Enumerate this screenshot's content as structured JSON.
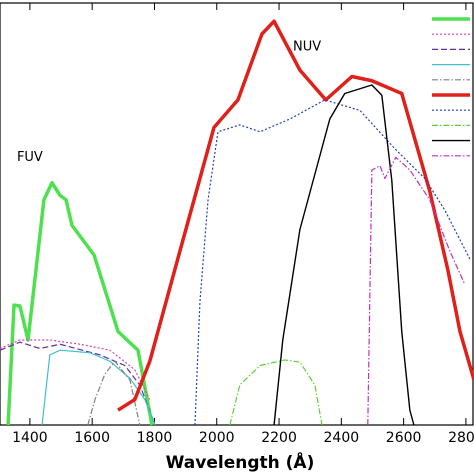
{
  "chart_data": {
    "type": "line",
    "xlabel": "Wavelength (Å)",
    "annotations": [
      {
        "text": "FUV",
        "x": 1400,
        "y": 63
      },
      {
        "text": "NUV",
        "x": 2290,
        "y": 89
      }
    ],
    "xlim": [
      1304,
      2826
    ],
    "ylim": [
      0,
      100
    ],
    "xticks": [
      1400,
      1600,
      1800,
      2000,
      2200,
      2400,
      2600,
      2800
    ],
    "legend": "upper right",
    "series": [
      {
        "color": "#4fe04f",
        "dash": "solid",
        "width": 3.5,
        "x": [
          1330,
          1349,
          1368,
          1394,
          1445,
          1471,
          1497,
          1516,
          1535,
          1606,
          1683,
          1747,
          1792
        ],
        "values": [
          0,
          28.2,
          28,
          20,
          53,
          57,
          54,
          53,
          47,
          40,
          22,
          17.6,
          0
        ]
      },
      {
        "color": "#e040b0",
        "dash": "dotted",
        "width": 1.2,
        "x": [
          1304,
          1368,
          1464,
          1561,
          1657,
          1737,
          1785
        ],
        "values": [
          18,
          20,
          20,
          19,
          17.6,
          13,
          6
        ]
      },
      {
        "color": "#6030a0",
        "dash": "dashed",
        "width": 1.2,
        "x": [
          1304,
          1368,
          1432,
          1497,
          1625,
          1705,
          1753,
          1802
        ],
        "values": [
          17.6,
          19.5,
          18,
          19,
          16.5,
          14,
          9.4,
          0
        ]
      },
      {
        "color": "#40c0d0",
        "dash": "solid",
        "width": 1.2,
        "x": [
          1439,
          1464,
          1497,
          1593,
          1657,
          1721,
          1769,
          1802
        ],
        "values": [
          0,
          16.5,
          17.6,
          17,
          15,
          11,
          6,
          0
        ]
      },
      {
        "color": "#808080",
        "dash": "dashdot",
        "width": 1.2,
        "x": [
          1586,
          1609,
          1641,
          1673,
          1721,
          1753
        ],
        "values": [
          0,
          6,
          12,
          15,
          10.6,
          0
        ]
      },
      {
        "color": "#e0201a",
        "dash": "solid",
        "width": 3.5,
        "x": [
          1683,
          1737,
          1785,
          1882,
          1991,
          2068,
          2145,
          2184,
          2267,
          2350,
          2434,
          2498,
          2594,
          2684,
          2742,
          2781,
          2826
        ],
        "values": [
          3.5,
          6,
          15,
          41,
          70,
          76.5,
          92,
          95,
          83.5,
          76.5,
          82,
          81,
          78,
          55,
          36.5,
          22,
          10.6
        ]
      },
      {
        "color": "#2040c0",
        "dash": "dotted",
        "width": 1.2,
        "x": [
          1930,
          1946,
          1972,
          2004,
          2074,
          2139,
          2235,
          2347,
          2460,
          2572,
          2668,
          2732,
          2813
        ],
        "values": [
          0,
          29,
          53,
          69,
          70.6,
          69,
          72,
          76.5,
          74,
          65,
          58,
          50.6,
          39
        ]
      },
      {
        "color": "#60d030",
        "dash": "dashdot",
        "width": 1.2,
        "x": [
          2042,
          2074,
          2139,
          2219,
          2267,
          2315,
          2338
        ],
        "values": [
          0,
          9.4,
          14,
          15.3,
          14.8,
          9.4,
          0
        ]
      },
      {
        "color": "#000000",
        "dash": "solid",
        "width": 1.4,
        "x": [
          2184,
          2212,
          2267,
          2363,
          2411,
          2498,
          2530,
          2562,
          2594,
          2620,
          2633
        ],
        "values": [
          0,
          20,
          46,
          72,
          78,
          80,
          77.6,
          57.6,
          22,
          3.5,
          0
        ]
      },
      {
        "color": "#c030c0",
        "dash": "dashdot",
        "width": 1.2,
        "x": [
          2485,
          2498,
          2524,
          2540,
          2575,
          2620,
          2684,
          2748,
          2797
        ],
        "values": [
          0,
          60,
          61,
          58,
          63,
          60,
          53,
          41,
          33
        ]
      }
    ]
  }
}
